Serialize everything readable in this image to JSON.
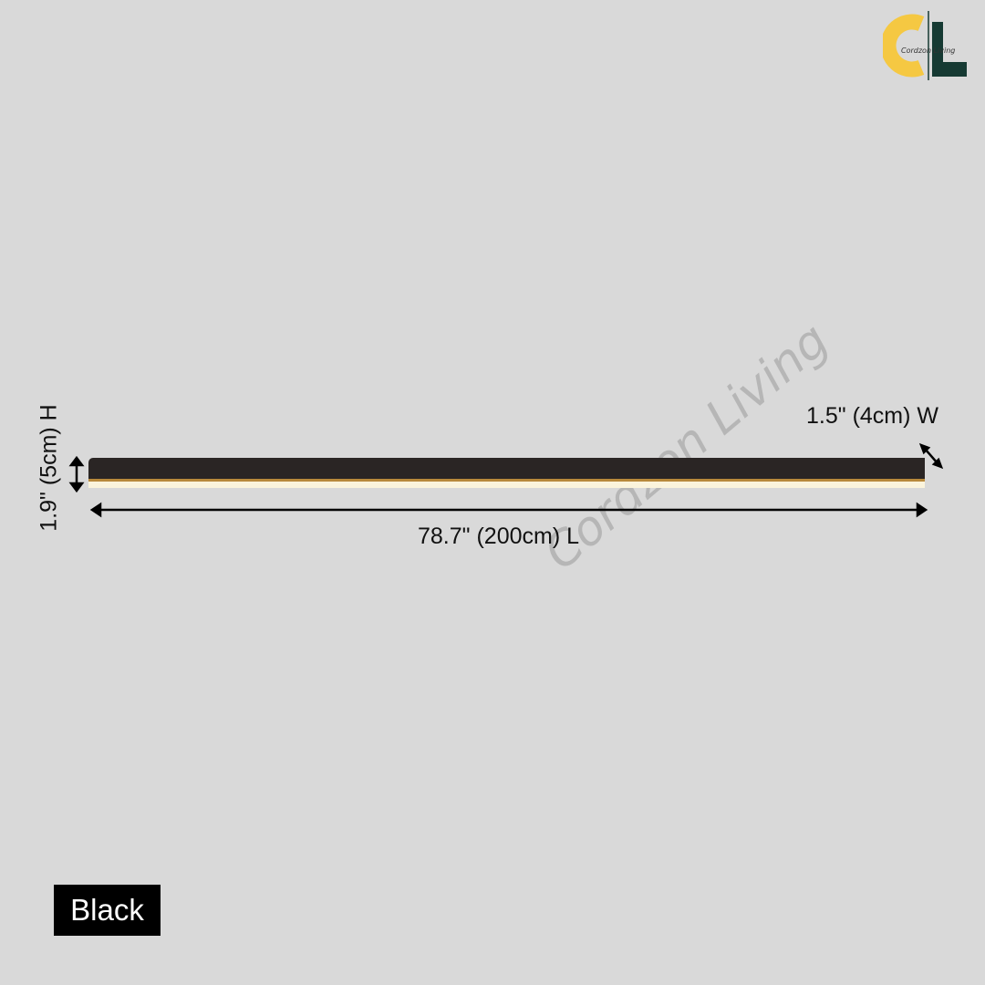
{
  "brand": {
    "logo_text": "Cordzon Living",
    "colors": {
      "yellow": "#f5c842",
      "dark": "#163a33"
    }
  },
  "watermark": "Cordzon Living",
  "dimensions": {
    "height": "1.9\" (5cm) H",
    "width": "1.5\" (4cm) W",
    "length": "78.7\" (200cm) L"
  },
  "color_badge": "Black",
  "colors": {
    "background": "#d9d9d9",
    "fixture": "#2a2524",
    "light": "#fbf4dc"
  }
}
